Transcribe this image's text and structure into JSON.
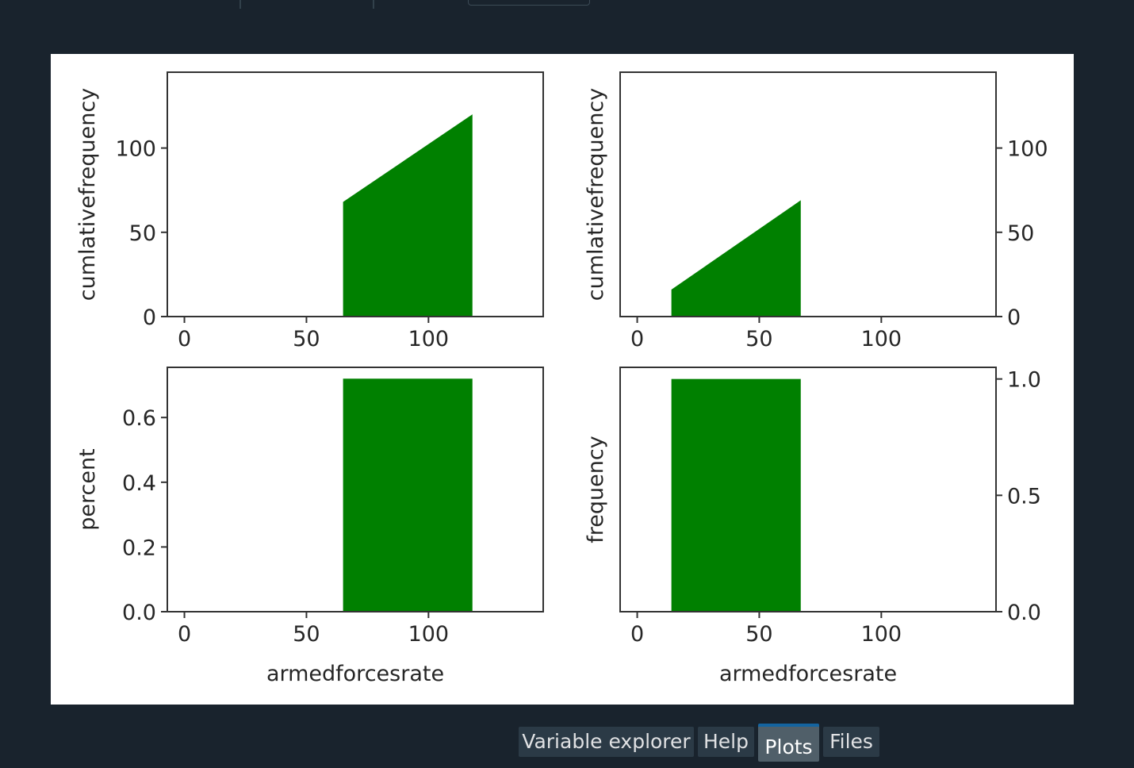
{
  "tabs": [
    {
      "label": "Variable explorer",
      "active": false
    },
    {
      "label": "Help",
      "active": false
    },
    {
      "label": "Plots",
      "active": true
    },
    {
      "label": "Files",
      "active": false
    }
  ],
  "colors": {
    "bar": "#008000",
    "axis": "#333333",
    "text": "#262626"
  },
  "chart_data": [
    {
      "type": "area",
      "ylabel": "cumlativefrequency",
      "xlabel": "",
      "xlim": [
        -7,
        147
      ],
      "ylim": [
        0,
        145
      ],
      "xticks": [
        0,
        50,
        100
      ],
      "yticks": [
        0,
        50,
        100
      ],
      "y_axis_side": "left",
      "x": [
        65,
        118
      ],
      "y": [
        68,
        120
      ]
    },
    {
      "type": "area",
      "ylabel": "cumlativefrequency",
      "xlabel": "",
      "xlim": [
        -7,
        147
      ],
      "ylim": [
        0,
        145
      ],
      "xticks": [
        0,
        50,
        100
      ],
      "yticks": [
        0,
        50,
        100
      ],
      "y_axis_side": "right",
      "x": [
        14,
        67
      ],
      "y": [
        16,
        69
      ]
    },
    {
      "type": "bar",
      "ylabel": "percent",
      "xlabel": "armedforcesrate",
      "xlim": [
        -7,
        147
      ],
      "ylim": [
        0,
        0.755
      ],
      "xticks": [
        0,
        50,
        100
      ],
      "yticks": [
        0.0,
        0.2,
        0.4,
        0.6
      ],
      "ytick_labels": [
        "0.0",
        "0.2",
        "0.4",
        "0.6"
      ],
      "y_axis_side": "left",
      "bars": [
        {
          "x0": 65,
          "x1": 118,
          "height": 0.72
        }
      ]
    },
    {
      "type": "bar",
      "ylabel": "frequency",
      "xlabel": "armedforcesrate",
      "xlim": [
        -7,
        147
      ],
      "ylim": [
        0,
        1.05
      ],
      "xticks": [
        0,
        50,
        100
      ],
      "yticks": [
        0.0,
        0.5,
        1.0
      ],
      "ytick_labels": [
        "0.0",
        "0.5",
        "1.0"
      ],
      "y_axis_side": "right",
      "bars": [
        {
          "x0": 14,
          "x1": 67,
          "height": 1.0
        }
      ]
    }
  ]
}
